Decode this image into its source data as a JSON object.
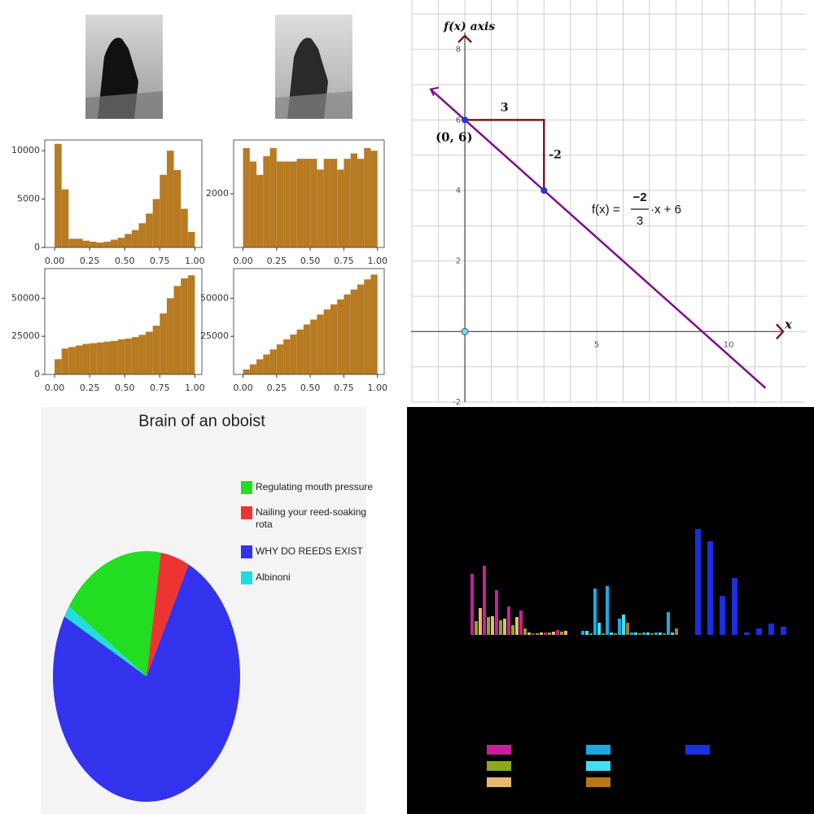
{
  "chart_data": [
    {
      "type": "histogram",
      "color": "#b87a22",
      "bins": [
        0,
        0.05,
        0.1,
        0.15,
        0.2,
        0.25,
        0.3,
        0.35,
        0.4,
        0.45,
        0.5,
        0.55,
        0.6,
        0.65,
        0.7,
        0.75,
        0.8,
        0.85,
        0.9,
        0.95,
        1
      ],
      "values": [
        10700,
        6000,
        900,
        900,
        700,
        600,
        500,
        600,
        800,
        1000,
        1400,
        1800,
        2500,
        3500,
        5000,
        7500,
        10000,
        8000,
        4000,
        1600
      ],
      "xlim": [
        -0.07,
        1.05
      ],
      "ylim": [
        0,
        11100
      ],
      "xticks": [
        {
          "value": 0,
          "label": "0.00"
        },
        {
          "value": 0.25,
          "label": "0.25"
        },
        {
          "value": 0.5,
          "label": "0.50"
        },
        {
          "value": 0.75,
          "label": "0.75"
        },
        {
          "value": 1,
          "label": "1.00"
        }
      ],
      "yticks": [
        0,
        5000,
        10000
      ]
    },
    {
      "type": "histogram",
      "color": "#b87a22",
      "bins": [
        0,
        0.05,
        0.1,
        0.15,
        0.2,
        0.25,
        0.3,
        0.35,
        0.4,
        0.45,
        0.5,
        0.55,
        0.6,
        0.65,
        0.7,
        0.75,
        0.8,
        0.85,
        0.9,
        0.95,
        1
      ],
      "values": [
        3700,
        3200,
        2700,
        3400,
        3700,
        3200,
        3200,
        3200,
        3300,
        3300,
        3300,
        2900,
        3300,
        3300,
        2900,
        3300,
        3500,
        3300,
        3700,
        3600
      ],
      "xlim": [
        -0.07,
        1.05
      ],
      "ylim": [
        0,
        4000
      ],
      "xticks": [
        {
          "value": 0,
          "label": "0.00"
        },
        {
          "value": 0.25,
          "label": "0.25"
        },
        {
          "value": 0.5,
          "label": "0.50"
        },
        {
          "value": 0.75,
          "label": "0.75"
        },
        {
          "value": 1,
          "label": "1.00"
        }
      ],
      "yticks": [
        2000
      ]
    },
    {
      "type": "histogram",
      "color": "#b87a22",
      "bins": [
        0,
        0.05,
        0.1,
        0.15,
        0.2,
        0.25,
        0.3,
        0.35,
        0.4,
        0.45,
        0.5,
        0.55,
        0.6,
        0.65,
        0.7,
        0.75,
        0.8,
        0.85,
        0.9,
        0.95,
        1
      ],
      "values": [
        10000,
        17000,
        18000,
        19000,
        20000,
        20500,
        21000,
        21500,
        22000,
        23000,
        23500,
        24500,
        26000,
        28000,
        32000,
        40000,
        50000,
        58000,
        63000,
        65000
      ],
      "xlim": [
        -0.07,
        1.05
      ],
      "ylim": [
        0,
        69400
      ],
      "xticks": [
        {
          "value": 0,
          "label": "0.00"
        },
        {
          "value": 0.25,
          "label": "0.25"
        },
        {
          "value": 0.5,
          "label": "0.50"
        },
        {
          "value": 0.75,
          "label": "0.75"
        },
        {
          "value": 1,
          "label": "1.00"
        }
      ],
      "yticks": [
        0,
        25000,
        50000
      ]
    },
    {
      "type": "histogram",
      "color": "#b87a22",
      "bins": [
        0,
        0.05,
        0.1,
        0.15,
        0.2,
        0.25,
        0.3,
        0.35,
        0.4,
        0.45,
        0.5,
        0.55,
        0.6,
        0.65,
        0.7,
        0.75,
        0.8,
        0.85,
        0.9,
        0.95,
        1
      ],
      "values": [
        3300,
        6600,
        9900,
        13100,
        16400,
        19700,
        23000,
        26200,
        29500,
        32800,
        36000,
        39300,
        42600,
        45900,
        49200,
        52500,
        55700,
        59000,
        62300,
        65500
      ],
      "xlim": [
        -0.07,
        1.05
      ],
      "ylim": [
        0,
        69400
      ],
      "xticks": [
        {
          "value": 0,
          "label": "0.00"
        },
        {
          "value": 0.25,
          "label": "0.25"
        },
        {
          "value": 0.5,
          "label": "0.50"
        },
        {
          "value": 0.75,
          "label": "0.75"
        },
        {
          "value": 1,
          "label": "1.00"
        }
      ],
      "yticks": [
        25000,
        50000
      ]
    },
    {
      "type": "line",
      "color": "#800d8c",
      "x": [
        -1.3,
        0,
        3,
        11.4
      ],
      "values": [
        6.87,
        6,
        4,
        -1.6
      ],
      "points": {
        "x": [
          0,
          3
        ],
        "y": [
          6,
          4
        ],
        "color": "#2038c8"
      },
      "xlim": [
        -2.04,
        12.93
      ],
      "ylim": [
        -2,
        9.4
      ],
      "xticks": [
        5,
        10
      ],
      "yticks": [
        -2,
        2,
        4,
        6,
        8
      ],
      "xgrid": [
        -2,
        -1,
        0,
        1,
        2,
        3,
        4,
        5,
        6,
        7,
        8,
        9,
        10,
        11,
        12
      ],
      "ygrid": [
        -2,
        -1,
        0,
        1,
        2,
        3,
        4,
        5,
        6,
        7,
        8,
        9
      ],
      "ylabel": "f(x) axis",
      "xlabel": "x",
      "run_label": "3",
      "rise_label": "-2",
      "point_label": "(0, 6)",
      "formula": {
        "lhs": "f(x) =",
        "numerator": "−2",
        "denominator": "3",
        "rhs": "·x + 6"
      }
    },
    {
      "type": "pie",
      "title": "Brain of an oboist",
      "start_angle": -56,
      "labels": [
        "Regulating mouth pressure",
        "Nailing your reed-soaking rota",
        "WHY DO REEDS EXIST",
        "Albinoni"
      ],
      "values": [
        18,
        5,
        75.5,
        1.5
      ],
      "colors": [
        "#22dd22",
        "#ee3333",
        "#3333ee",
        "#22dddd"
      ]
    },
    {
      "type": "grouped_bar",
      "background": "#000000",
      "ylim": [
        0,
        140
      ],
      "groups": [
        {
          "series": [
            {
              "color": "#c8209a",
              "values": [
                75,
                85,
                55,
                35,
                30,
                2,
                3,
                6
              ]
            },
            {
              "color": "#8aa81e",
              "values": [
                17,
                22,
                18,
                12,
                8,
                2,
                3,
                4
              ]
            },
            {
              "color": "#e8b870",
              "values": [
                33,
                23,
                20,
                22,
                3,
                3,
                4,
                5
              ]
            }
          ]
        },
        {
          "series": [
            {
              "color": "#1ea8e0",
              "values": [
                5,
                57,
                60,
                20,
                3,
                3,
                3,
                28
              ]
            },
            {
              "color": "#40e0f0",
              "values": [
                5,
                15,
                3,
                25,
                3,
                3,
                3,
                3
              ]
            },
            {
              "color": "#b87818",
              "values": [
                2,
                2,
                2,
                15,
                2,
                2,
                2,
                8
              ]
            }
          ]
        },
        {
          "series": [
            {
              "color": "#1830e0",
              "values": [
                130,
                115,
                48,
                70,
                3,
                8,
                14,
                10
              ]
            }
          ]
        }
      ]
    }
  ]
}
